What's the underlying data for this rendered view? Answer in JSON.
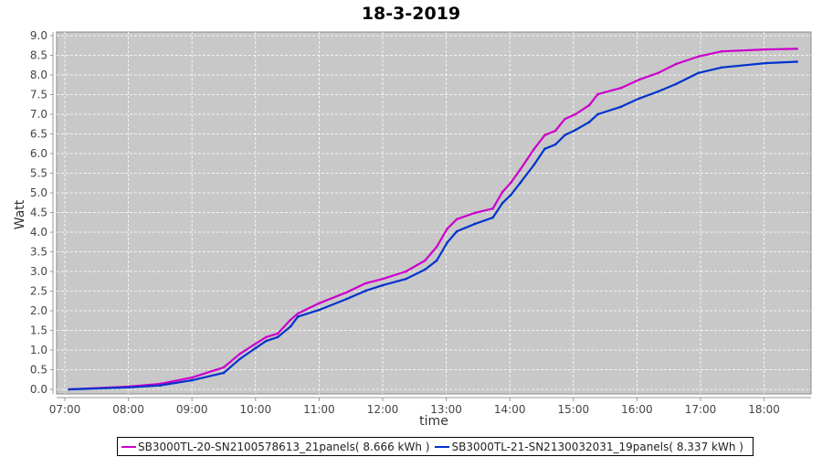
{
  "chart_data": {
    "type": "line",
    "title": "18-3-2019",
    "xlabel": "time",
    "ylabel": "Watt",
    "ylim": [
      0,
      9.0
    ],
    "xlim": [
      "06:58",
      "18:56"
    ],
    "grid": true,
    "legend_position": "bottom",
    "yticks": [
      "0.0",
      "0.5",
      "1.0",
      "1.5",
      "2.0",
      "2.5",
      "3.0",
      "3.5",
      "4.0",
      "4.5",
      "5.0",
      "5.5",
      "6.0",
      "6.5",
      "7.0",
      "7.5",
      "8.0",
      "8.5",
      "9.0"
    ],
    "xticks": [
      "07:00",
      "08:00",
      "09:00",
      "10:00",
      "11:00",
      "12:00",
      "13:00",
      "14:00",
      "15:00",
      "16:00",
      "17:00",
      "18:00"
    ],
    "x": [
      "07:04",
      "08:00",
      "08:30",
      "09:00",
      "09:30",
      "09:45",
      "10:00",
      "10:10",
      "10:21",
      "10:33",
      "10:40",
      "11:00",
      "11:26",
      "11:44",
      "12:00",
      "12:22",
      "12:40",
      "12:51",
      "13:01",
      "13:10",
      "13:27",
      "13:44",
      "13:53",
      "14:01",
      "14:10",
      "14:23",
      "14:33",
      "14:43",
      "14:52",
      "15:02",
      "15:15",
      "15:23",
      "15:45",
      "16:02",
      "16:20",
      "16:37",
      "16:58",
      "17:20",
      "18:01",
      "18:31"
    ],
    "series": [
      {
        "name": "SB3000TL-20-SN2100578613_21panels( 8.666 kWh )",
        "color": "#cc00cc",
        "values": [
          0,
          0.07,
          0.14,
          0.3,
          0.56,
          0.9,
          1.16,
          1.33,
          1.42,
          1.77,
          1.93,
          2.19,
          2.47,
          2.7,
          2.81,
          3.0,
          3.28,
          3.63,
          4.09,
          4.33,
          4.49,
          4.6,
          5.02,
          5.26,
          5.6,
          6.12,
          6.47,
          6.58,
          6.88,
          7.0,
          7.23,
          7.51,
          7.67,
          7.88,
          8.05,
          8.28,
          8.47,
          8.6,
          8.65,
          8.666
        ]
      },
      {
        "name": "SB3000TL-21-SN2130032031_19panels( 8.337 kWh )",
        "color": "#0033cc",
        "values": [
          0,
          0.05,
          0.1,
          0.23,
          0.42,
          0.77,
          1.05,
          1.23,
          1.33,
          1.6,
          1.85,
          2.02,
          2.3,
          2.51,
          2.65,
          2.81,
          3.05,
          3.28,
          3.74,
          4.02,
          4.21,
          4.37,
          4.74,
          4.95,
          5.26,
          5.72,
          6.12,
          6.23,
          6.47,
          6.6,
          6.8,
          7.0,
          7.19,
          7.4,
          7.58,
          7.77,
          8.05,
          8.19,
          8.3,
          8.337
        ]
      }
    ],
    "plot_background": "#c8c8c8"
  }
}
